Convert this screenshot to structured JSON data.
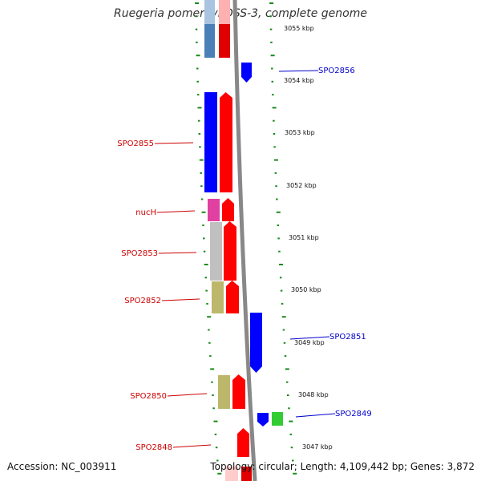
{
  "title": "Ruegeria pomeroyi DSS-3, complete genome",
  "footer": {
    "accession": "Accession: NC_003911",
    "topology": "Topology: circular; Length: 4,109,442 bp; Genes: 3,872"
  },
  "colors": {
    "forward": "#ff0000",
    "reverse": "#0000ff",
    "tick": "#1a8a1a",
    "backbone": "#888888",
    "forward_label": "#cc0000",
    "reverse_label": "#0000cc"
  },
  "scale": {
    "unit": "kbp",
    "ticks": [
      "3055 kbp",
      "3054 kbp",
      "3053 kbp",
      "3052 kbp",
      "3051 kbp",
      "3050 kbp",
      "3049 kbp",
      "3048 kbp",
      "3047 kbp"
    ]
  },
  "genes": [
    {
      "label": "SPO2856",
      "strand": "reverse"
    },
    {
      "label": "SPO2855",
      "strand": "forward"
    },
    {
      "label": "nucH",
      "strand": "forward"
    },
    {
      "label": "SPO2853",
      "strand": "forward"
    },
    {
      "label": "SPO2852",
      "strand": "forward"
    },
    {
      "label": "SPO2851",
      "strand": "reverse"
    },
    {
      "label": "SPO2850",
      "strand": "forward"
    },
    {
      "label": "SPO2849",
      "strand": "reverse"
    },
    {
      "label": "SPO2848",
      "strand": "forward"
    }
  ]
}
